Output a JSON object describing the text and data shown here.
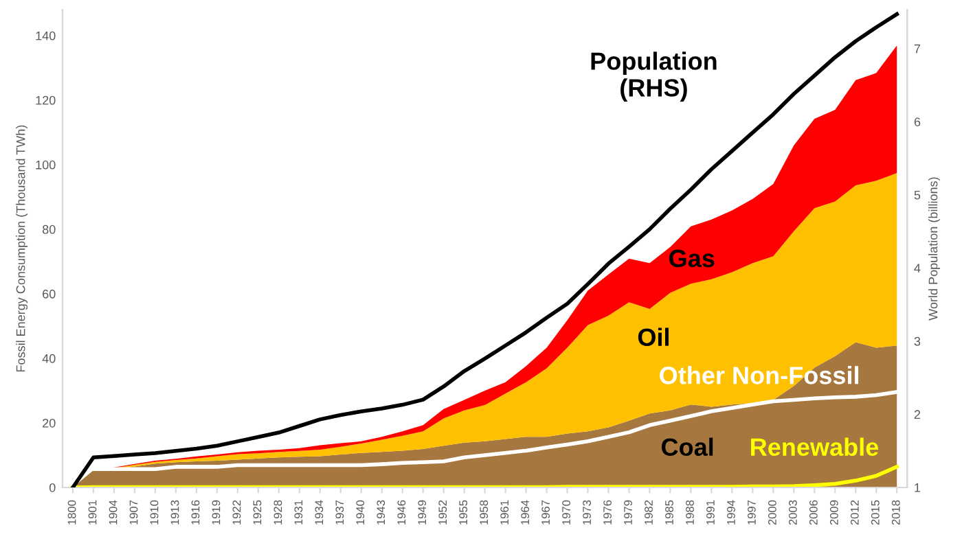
{
  "chart_data": {
    "type": "area",
    "stacked": true,
    "legend": false,
    "grid": false,
    "xlabel": null,
    "ylabel": "Fossil Energy Consumption (Thousand TWh)",
    "y2label": "World Population (billions)",
    "categories": [
      "1800",
      "1901",
      "1904",
      "1907",
      "1910",
      "1913",
      "1916",
      "1919",
      "1922",
      "1925",
      "1928",
      "1931",
      "1934",
      "1937",
      "1940",
      "1943",
      "1946",
      "1949",
      "1952",
      "1955",
      "1958",
      "1961",
      "1964",
      "1967",
      "1970",
      "1973",
      "1976",
      "1979",
      "1982",
      "1985",
      "1988",
      "1991",
      "1994",
      "1997",
      "2000",
      "2003",
      "2006",
      "2009",
      "2012",
      "2015",
      "2018"
    ],
    "ylim": [
      0,
      148
    ],
    "yticks": [
      0,
      20,
      40,
      60,
      80,
      100,
      120,
      140
    ],
    "y2lim": [
      1,
      7.53
    ],
    "y2ticks": [
      1,
      2,
      3,
      4,
      5,
      6,
      7
    ],
    "series": [
      {
        "name": "Coal",
        "color": "#a6773f",
        "values": [
          0,
          5.3,
          5.6,
          6.5,
          7.4,
          7.8,
          8.1,
          8.3,
          8.6,
          9.0,
          9.3,
          9.5,
          9.7,
          10.2,
          10.7,
          11.0,
          11.4,
          11.9,
          12.9,
          13.9,
          14.3,
          15,
          15.7,
          15.7,
          16.7,
          17.4,
          18.6,
          20.7,
          22.9,
          23.9,
          25.7,
          25,
          25.7,
          26.1,
          27.1,
          31.4,
          37.1,
          40.7,
          45,
          43.3,
          44
        ]
      },
      {
        "name": "Oil",
        "color": "#ffc000",
        "values": [
          0,
          0,
          0.4,
          0.5,
          0.5,
          0.7,
          0.9,
          1.4,
          1.7,
          1.6,
          1.7,
          1.8,
          2.0,
          2.4,
          2.9,
          3.8,
          4.6,
          5.5,
          8.5,
          10,
          11.2,
          14.1,
          16.9,
          21.2,
          26.6,
          32.9,
          34.6,
          36.7,
          32.4,
          36.4,
          37.4,
          39.5,
          41,
          43.4,
          44.5,
          48,
          49.4,
          47.9,
          48.6,
          51.7,
          53.4
        ]
      },
      {
        "name": "Gas",
        "color": "#ff0000",
        "values": [
          0,
          0,
          0.2,
          0.3,
          0.4,
          0.4,
          0.6,
          0.5,
          0.6,
          0.8,
          0.7,
          0.9,
          1.4,
          1.1,
          0.7,
          0.9,
          1.4,
          1.9,
          2.9,
          3.2,
          4.5,
          3.5,
          5,
          6.4,
          8.5,
          10.7,
          12.8,
          13.5,
          14.2,
          14.2,
          17.8,
          18.5,
          19.1,
          19.9,
          22.4,
          26.6,
          27.7,
          28.4,
          32.6,
          33.4,
          39.5
        ]
      },
      {
        "name": "Other Non-Fossil",
        "type": "line",
        "color": "#ffffff",
        "values": [
          null,
          5.7,
          5.7,
          5.7,
          5.7,
          6.4,
          6.4,
          6.4,
          6.9,
          6.9,
          6.9,
          6.9,
          6.9,
          6.9,
          6.9,
          7.2,
          7.6,
          7.8,
          8.1,
          9.3,
          10,
          10.7,
          11.4,
          12.4,
          13.3,
          14.3,
          15.7,
          17.1,
          19.3,
          20.7,
          22.1,
          23.6,
          24.6,
          25.7,
          26.7,
          27.1,
          27.6,
          27.9,
          28.1,
          28.6,
          29.6
        ]
      },
      {
        "name": "Renewable",
        "type": "line",
        "color": "#ffff00",
        "values": [
          0,
          0.1,
          0.1,
          0.1,
          0.1,
          0.1,
          0.1,
          0.1,
          0.1,
          0.1,
          0.1,
          0.1,
          0.1,
          0.1,
          0.1,
          0.1,
          0.1,
          0.1,
          0.1,
          0.1,
          0.1,
          0.1,
          0.1,
          0.1,
          0.2,
          0.2,
          0.2,
          0.2,
          0.2,
          0.2,
          0.2,
          0.2,
          0.2,
          0.3,
          0.3,
          0.4,
          0.7,
          1.1,
          2.1,
          3.6,
          6.4
        ]
      },
      {
        "name": "Population (RHS)",
        "type": "line",
        "axis": "y2",
        "color": "#000000",
        "values": [
          1.0,
          1.41,
          1.43,
          1.45,
          1.47,
          1.5,
          1.53,
          1.57,
          1.63,
          1.69,
          1.75,
          1.84,
          1.93,
          1.99,
          2.04,
          2.08,
          2.13,
          2.2,
          2.38,
          2.59,
          2.76,
          2.94,
          3.12,
          3.32,
          3.51,
          3.78,
          4.06,
          4.29,
          4.53,
          4.81,
          5.07,
          5.35,
          5.6,
          5.85,
          6.1,
          6.38,
          6.63,
          6.88,
          7.1,
          7.29,
          7.47
        ]
      }
    ]
  }
}
